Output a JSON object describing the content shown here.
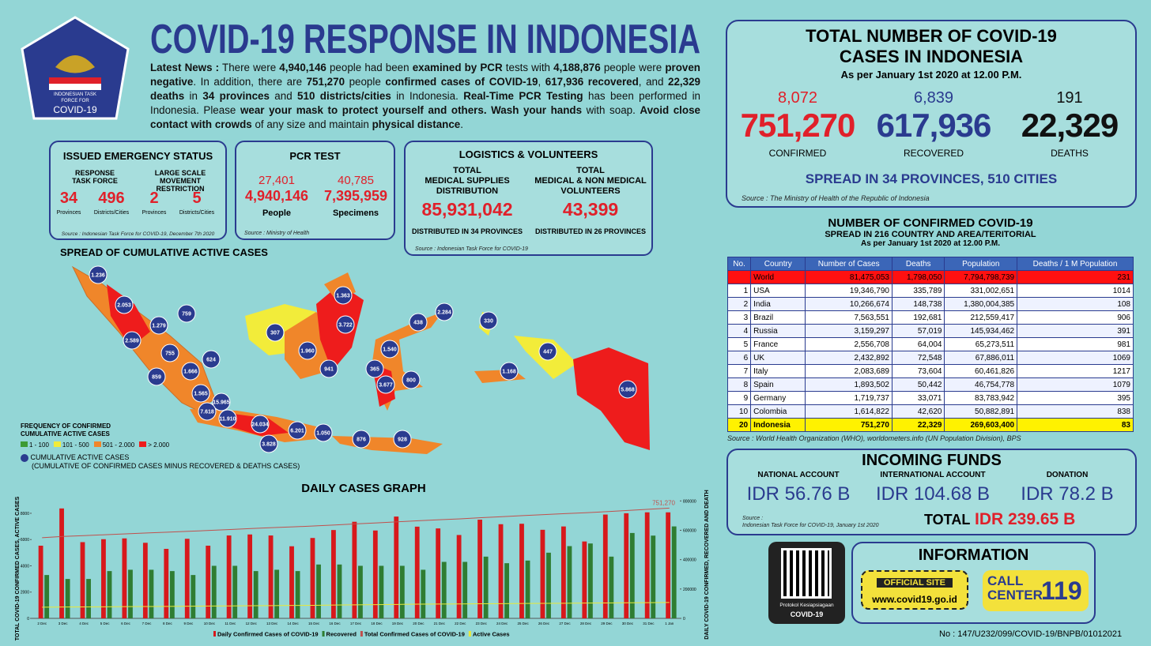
{
  "header": {
    "title": "COVID-19 RESPONSE IN INDONESIA",
    "logo": [
      "INDONESIAN TASK",
      "FORCE FOR",
      "COVID-19"
    ],
    "news": [
      {
        "t": "Latest News :",
        "b": true
      },
      {
        "t": " There were "
      },
      {
        "t": "4,940,146",
        "b": true
      },
      {
        "t": " people had been "
      },
      {
        "t": "examined by PCR",
        "b": true
      },
      {
        "t": " tests with "
      },
      {
        "t": "4,188,876",
        "b": true
      },
      {
        "t": " people were "
      },
      {
        "t": "proven negative",
        "b": true
      },
      {
        "t": ". In addition, there are "
      },
      {
        "t": "751,270",
        "b": true
      },
      {
        "t": " people "
      },
      {
        "t": "confirmed cases of COVID-19",
        "b": true
      },
      {
        "t": ", "
      },
      {
        "t": "617,936",
        "b": true
      },
      {
        "t": " "
      },
      {
        "t": "recovered",
        "b": true
      },
      {
        "t": ", and "
      },
      {
        "t": "22,329 deaths",
        "b": true
      },
      {
        "t": " in "
      },
      {
        "t": "34 provinces",
        "b": true
      },
      {
        "t": " and "
      },
      {
        "t": "510 districts/cities",
        "b": true
      },
      {
        "t": " in Indonesia. "
      },
      {
        "t": "Real-Time PCR Testing",
        "b": true
      },
      {
        "t": " has been performed in Indonesia. Please "
      },
      {
        "t": "wear your mask to protect yourself and others. Wash your hands",
        "b": true
      },
      {
        "t": " with soap. "
      },
      {
        "t": "Avoid close contact with crowds",
        "b": true
      },
      {
        "t": " of any size and maintain "
      },
      {
        "t": "physical distance",
        "b": true
      },
      {
        "t": "."
      }
    ]
  },
  "emergency": {
    "title": "ISSUED EMERGENCY STATUS",
    "groups": [
      {
        "label": [
          "RESPONSE",
          "TASK FORCE"
        ],
        "items": [
          {
            "value": "34",
            "unit": "Provinces"
          },
          {
            "value": "496",
            "unit": "Districts/Cities"
          }
        ]
      },
      {
        "label": [
          "LARGE SCALE",
          "MOVEMENT RESTRICTION"
        ],
        "items": [
          {
            "value": "2",
            "unit": "Provinces"
          },
          {
            "value": "5",
            "unit": "Districts/Cities"
          }
        ]
      }
    ],
    "source": "Source : Indonesian Task Force for COVID-19, December 7th 2020"
  },
  "pcr": {
    "title": "PCR TEST",
    "items": [
      {
        "increase": "27,401",
        "value": "4,940,146",
        "unit": "People"
      },
      {
        "increase": "40,785",
        "value": "7,395,959",
        "unit": "Specimens"
      }
    ],
    "source": "Source : Ministry of Health"
  },
  "logistics": {
    "title": "LOGISTICS & VOLUNTEERS",
    "items": [
      {
        "label": [
          "TOTAL",
          "MEDICAL SUPPLIES",
          "DISTRIBUTION"
        ],
        "value": "85,931,042",
        "note": "DISTRIBUTED IN 34 PROVINCES"
      },
      {
        "label": [
          "TOTAL",
          "MEDICAL & NON MEDICAL",
          "VOLUNTEERS"
        ],
        "value": "43,399",
        "note": "DISTRIBUTED IN 26 PROVINCES"
      }
    ],
    "source": "Source : Indonesian Task Force for COVID-19"
  },
  "totals": {
    "title": [
      "TOTAL NUMBER OF COVID-19",
      "CASES IN INDONESIA"
    ],
    "subtitle": "As per January 1st 2020 at 12.00 P.M.",
    "stats": [
      {
        "increase": "8,072",
        "value": "751,270",
        "label": "CONFIRMED",
        "color": "#e0202a"
      },
      {
        "increase": "6,839",
        "value": "617,936",
        "label": "RECOVERED",
        "color": "#2a3b8f"
      },
      {
        "increase": "191",
        "value": "22,329",
        "label": "DEATHS",
        "color": "#111111"
      }
    ],
    "spread": "SPREAD IN 34 PROVINCES, 510 CITIES",
    "source": "Source : The Ministry of Health of the Republic of Indonesia"
  },
  "table": {
    "title": "NUMBER OF CONFIRMED COVID-19",
    "subtitle": "SPREAD IN 216 COUNTRY AND AREA/TERITORIAL",
    "date": "As per January 1st 2020 at 12.00 P.M.",
    "headers": [
      "No.",
      "Country",
      "Number of Cases",
      "Deaths",
      "Population",
      "Deaths / 1 M Population"
    ],
    "rows": [
      [
        "",
        "World",
        "81,475,053",
        "1,798,050",
        "7,794,798,739",
        "231"
      ],
      [
        "1",
        "USA",
        "19,346,790",
        "335,789",
        "331,002,651",
        "1014"
      ],
      [
        "2",
        "India",
        "10,266,674",
        "148,738",
        "1,380,004,385",
        "108"
      ],
      [
        "3",
        "Brazil",
        "7,563,551",
        "192,681",
        "212,559,417",
        "906"
      ],
      [
        "4",
        "Russia",
        "3,159,297",
        "57,019",
        "145,934,462",
        "391"
      ],
      [
        "5",
        "France",
        "2,556,708",
        "64,004",
        "65,273,511",
        "981"
      ],
      [
        "6",
        "UK",
        "2,432,892",
        "72,548",
        "67,886,011",
        "1069"
      ],
      [
        "7",
        "Italy",
        "2,083,689",
        "73,604",
        "60,461,826",
        "1217"
      ],
      [
        "8",
        "Spain",
        "1,893,502",
        "50,442",
        "46,754,778",
        "1079"
      ],
      [
        "9",
        "Germany",
        "1,719,737",
        "33,071",
        "83,783,942",
        "395"
      ],
      [
        "10",
        "Colombia",
        "1,614,822",
        "42,620",
        "50,882,891",
        "838"
      ],
      [
        "20",
        "Indonesia",
        "751,270",
        "22,329",
        "269,603,400",
        "83"
      ]
    ],
    "source": "Source : World Health Organization (WHO), worldometers.info (UN Population Division), BPS"
  },
  "funds": {
    "title": "INCOMING FUNDS",
    "accounts": [
      {
        "label": "NATIONAL ACCOUNT",
        "value": "IDR 56.76 B"
      },
      {
        "label": "INTERNATIONAL ACCOUNT",
        "value": "IDR 104.68 B"
      },
      {
        "label": "DONATION",
        "value": "IDR 78.2 B"
      }
    ],
    "source": [
      "Source :",
      "Indonesian Task Force for COVID-19, January 1st 2020"
    ],
    "total_label": "TOTAL",
    "total": "IDR 239.65 B"
  },
  "info": {
    "qr_caption": [
      "Protokol Kesiapsiagaan",
      "COVID-19"
    ],
    "title": "INFORMATION",
    "site_label": "OFFICIAL SITE",
    "site": "www.covid19.go.id",
    "call": [
      "CALL",
      "CENTER"
    ],
    "call_number": "119"
  },
  "footer": "No : 147/U232/099/COVID-19/BNPB/01012021",
  "map": {
    "title": "SPREAD OF CUMULATIVE ACTIVE CASES",
    "legend_title": [
      "FREQUENCY OF CONFIRMED",
      "CUMULATIVE ACTIVE CASES"
    ],
    "legend": [
      {
        "label": "1 - 100",
        "color": "#3d9b35"
      },
      {
        "label": "101 - 500",
        "color": "#f2ec3a"
      },
      {
        "label": "501 - 2.000",
        "color": "#f0862a"
      },
      {
        "label": "> 2.000",
        "color": "#ee1c1c"
      }
    ],
    "bubble_legend": [
      "CUMULATIVE ACTIVE CASES",
      "(CUMULATIVE OF CONFIRMED CASES MINUS RECOVERED & DEATHS CASES)"
    ],
    "bubbles": [
      "1.236",
      "2.053",
      "1.279",
      "759",
      "2.589",
      "755",
      "624",
      "1.666",
      "859",
      "1.565",
      "15.965",
      "7.618",
      "11.910",
      "24.034",
      "6.201",
      "3.828",
      "1.050",
      "876",
      "928",
      "307",
      "1.960",
      "941",
      "1.363",
      "3.722",
      "1.540",
      "365",
      "3.677",
      "800",
      "438",
      "2.284",
      "330",
      "1.168",
      "447",
      "5.868"
    ]
  },
  "chart_data": {
    "type": "bar",
    "title": "DAILY CASES GRAPH",
    "y_label": "TOTAL COVID-19 CONFIRMED CASES, ACTIVE CASES",
    "y2_label": "DAILY COVID-19 CONFIRMED, RECOVERED AND DEATH",
    "categories": [
      "2 Dec",
      "3 Dec",
      "4 Dec",
      "5 Dec",
      "6 Dec",
      "7 Dec",
      "8 Dec",
      "9 Dec",
      "10 Dec",
      "11 Dec",
      "12 Dec",
      "13 Dec",
      "14 Dec",
      "15 Dec",
      "16 Dec",
      "17 Dec",
      "18 Dec",
      "19 Dec",
      "20 Dec",
      "21 Dec",
      "22 Dec",
      "23 Dec",
      "24 Dec",
      "25 Dec",
      "26 Dec",
      "27 Dec",
      "28 Dec",
      "29 Dec",
      "30 Dec",
      "31 Dec",
      "1 Jan"
    ],
    "series": [
      {
        "name": "Daily Confirmed Cases of COVID-19",
        "color": "#d7191c",
        "values": [
          5533,
          8369,
          5803,
          6027,
          6089,
          5754,
          5292,
          6058,
          5533,
          6310,
          6388,
          6310,
          5489,
          6120,
          6725,
          7354,
          6689,
          7751,
          6982,
          6848,
          6347,
          7514,
          7169,
          7203,
          6743,
          6997,
          5854,
          7903,
          8002,
          8074,
          8072
        ]
      },
      {
        "name": "Recovered",
        "color": "#2f7d32",
        "values": [
          3300,
          3000,
          3000,
          3600,
          3700,
          3700,
          3600,
          3300,
          4000,
          4000,
          3600,
          3700,
          3600,
          4100,
          4100,
          4000,
          4000,
          4000,
          3700,
          4300,
          4300,
          4700,
          4200,
          4400,
          5000,
          5500,
          5700,
          4700,
          6500,
          6300,
          7000
        ]
      },
      {
        "name": "Total Confirmed Cases of COVID-19",
        "color": "#c0504d",
        "axis": "y2",
        "values": [
          549508,
          557877,
          563680,
          569707,
          575796,
          581550,
          586842,
          592900,
          598933,
          605243,
          611631,
          617820,
          623309,
          629429,
          636154,
          643508,
          650197,
          657948,
          664930,
          671778,
          678125,
          685639,
          692838,
          700097,
          706837,
          713365,
          719219,
          727122,
          735124,
          743198,
          751270
        ]
      },
      {
        "name": "Active Cases",
        "color": "#e8e83a",
        "axis": "y2",
        "values": [
          76000,
          77000,
          78000,
          79000,
          80000,
          80500,
          81500,
          83000,
          84000,
          85000,
          86000,
          87000,
          88000,
          89000,
          90500,
          92000,
          93500,
          95000,
          96500,
          97500,
          98500,
          99500,
          100500,
          101500,
          102000,
          103000,
          104000,
          105000,
          106000,
          107000,
          108000
        ]
      }
    ],
    "end_label": "751,270",
    "ylim": [
      0,
      9500
    ],
    "yticks": [
      0,
      2000,
      4000,
      6000,
      8000
    ],
    "y2lim": [
      0,
      850000
    ],
    "y2ticks": [
      0,
      200000,
      400000,
      600000,
      800000
    ]
  }
}
